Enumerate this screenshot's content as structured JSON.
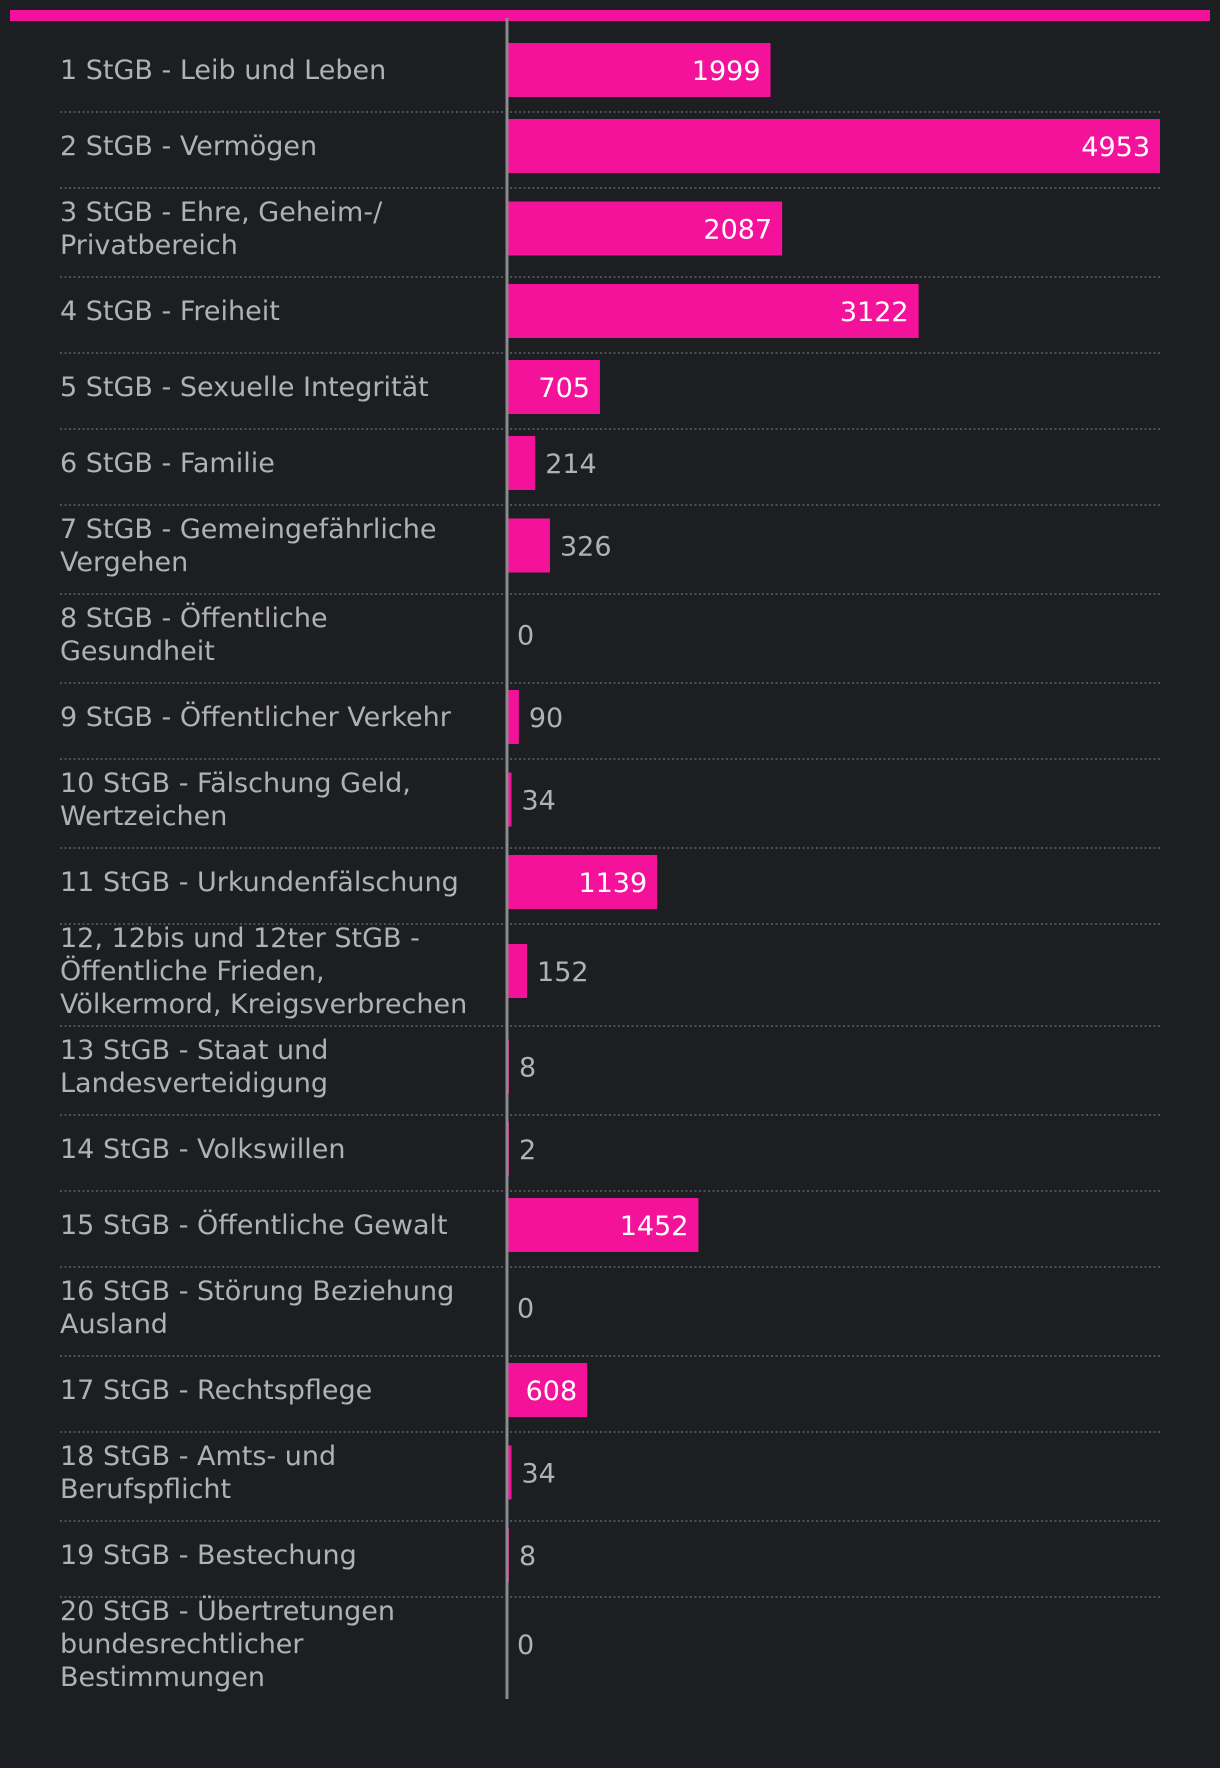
{
  "colors": {
    "background": "#1d1e21",
    "accent": "#f5129a",
    "label_text": "#b0b1b3",
    "value_text_inside": "#ffffff"
  },
  "chart_data": {
    "type": "bar",
    "orientation": "horizontal",
    "title": "",
    "xlabel": "",
    "ylabel": "",
    "xlim": [
      0,
      4953
    ],
    "grid": false,
    "legend": "none",
    "categories": [
      "1 StGB - Leib und Leben",
      "2 StGB - Vermögen",
      "3 StGB - Ehre, Geheim-/ Privatbereich",
      "4 StGB - Freiheit",
      "5 StGB - Sexuelle Integrität",
      "6 StGB - Familie",
      "7 StGB - Gemeingefährliche Vergehen",
      "8 StGB - Öffentliche Gesundheit",
      "9 StGB - Öffentlicher Verkehr",
      "10 StGB - Fälschung Geld, Wertzeichen",
      "11 StGB - Urkundenfälschung",
      "12, 12bis und 12ter StGB - Öffentliche Frieden, Völkermord, Kreigsverbrechen",
      "13 StGB - Staat und Landesverteidigung",
      "14 StGB - Volkswillen",
      "15 StGB - Öffentliche Gewalt",
      "16 StGB - Störung Beziehung Ausland",
      "17 StGB - Rechtspflege",
      "18 StGB - Amts- und Berufspflicht",
      "19 StGB - Bestechung",
      "20 StGB - Übertretungen bundesrechtlicher Bestimmungen"
    ],
    "values": [
      1999,
      4953,
      2087,
      3122,
      705,
      214,
      326,
      0,
      90,
      34,
      1139,
      152,
      8,
      2,
      1452,
      0,
      608,
      34,
      8,
      0
    ]
  }
}
